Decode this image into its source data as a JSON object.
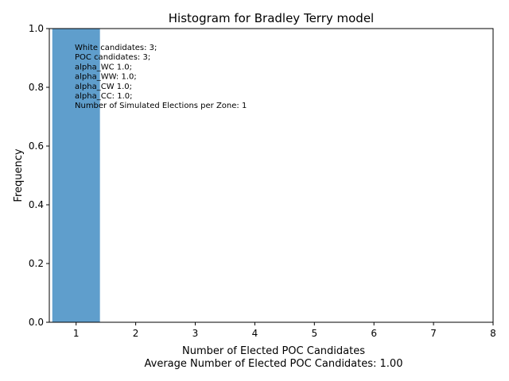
{
  "chart_data": {
    "type": "bar",
    "title": "Histogram for Bradley Terry model",
    "xlabel": "Number of Elected POC Candidates",
    "xlabel_sub": "Average Number of Elected POC Candidates: 1.00",
    "ylabel": "Frequency",
    "xlim": [
      0.55,
      8
    ],
    "ylim": [
      0,
      1.0
    ],
    "xticks": [
      1,
      2,
      3,
      4,
      5,
      6,
      7,
      8
    ],
    "yticks": [
      0.0,
      0.2,
      0.4,
      0.6,
      0.8,
      1.0
    ],
    "bars": [
      {
        "x_start": 0.6,
        "x_end": 1.4,
        "value": 1.0
      }
    ],
    "bar_color": "#5f9ecc",
    "grid": false,
    "annotation_lines": [
      "White candidates: 3;",
      "POC candidates: 3;",
      "alpha_WC 1.0;",
      "alpha_WW: 1.0;",
      "alpha_CW 1.0;",
      "alpha_CC: 1.0;",
      "Number of Simulated Elections per Zone: 1"
    ]
  }
}
